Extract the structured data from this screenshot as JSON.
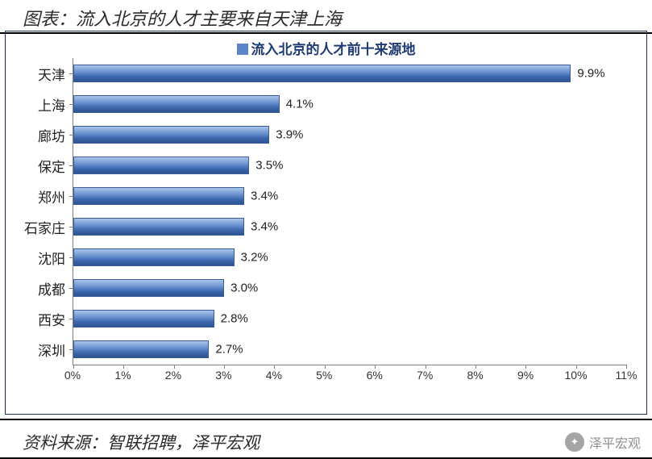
{
  "title": "图表：流入北京的人才主要来自天津上海",
  "legend_label": "流入北京的人才前十来源地",
  "source_label": "资料来源：智联招聘，泽平宏观",
  "watermark": "泽平宏观",
  "chart": {
    "type": "bar-horizontal",
    "xlim": [
      0,
      11
    ],
    "xtick_step": 1,
    "xtick_format_suffix": "%",
    "bar_gradient": [
      "#a9c4e8",
      "#6d94cf",
      "#3c68b0",
      "#2d528f"
    ],
    "bar_border_color": "#3a5d9a",
    "axis_color": "#808080",
    "label_font_size": 17,
    "xtick_font_size": 14,
    "value_label_font_size": 15,
    "background_color": "#ffffff",
    "frame_border_color": "#1e2e5a",
    "legend_font_color": "#1f3b73",
    "legend_font_size": 17,
    "legend_swatch_color": "#5b85c6",
    "bars": [
      {
        "category": "天津",
        "value": 9.9,
        "label": "9.9%"
      },
      {
        "category": "上海",
        "value": 4.1,
        "label": "4.1%"
      },
      {
        "category": "廊坊",
        "value": 3.9,
        "label": "3.9%"
      },
      {
        "category": "保定",
        "value": 3.5,
        "label": "3.5%"
      },
      {
        "category": "郑州",
        "value": 3.4,
        "label": "3.4%"
      },
      {
        "category": "石家庄",
        "value": 3.4,
        "label": "3.4%"
      },
      {
        "category": "沈阳",
        "value": 3.2,
        "label": "3.2%"
      },
      {
        "category": "成都",
        "value": 3.0,
        "label": "3.0%"
      },
      {
        "category": "西安",
        "value": 2.8,
        "label": "2.8%"
      },
      {
        "category": "深圳",
        "value": 2.7,
        "label": "2.7%"
      }
    ],
    "xticks": [
      "0%",
      "1%",
      "2%",
      "3%",
      "4%",
      "5%",
      "6%",
      "7%",
      "8%",
      "9%",
      "10%",
      "11%"
    ]
  }
}
